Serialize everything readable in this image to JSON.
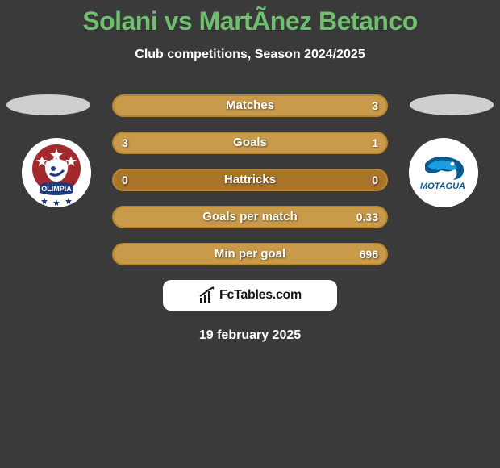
{
  "header": {
    "title": "Solani vs MartÃ­nez Betanco",
    "title_color": "#6fbf6f",
    "subtitle": "Club competitions, Season 2024/2025"
  },
  "teams": {
    "left": {
      "name": "Olimpia",
      "badge_bg": "#ffffff",
      "primary": "#a22a2f",
      "secondary": "#1e3a7a"
    },
    "right": {
      "name": "Motagua",
      "badge_bg": "#ffffff",
      "primary": "#0b5a8f",
      "secondary": "#1b9de0"
    }
  },
  "bars": {
    "border_color": "#b8862f",
    "dark_fill": "#a8742a",
    "light_fill": "#c89a4a",
    "stats": [
      {
        "label": "Matches",
        "left": "",
        "right": "3",
        "left_pct": 0,
        "right_pct": 100
      },
      {
        "label": "Goals",
        "left": "3",
        "right": "1",
        "left_pct": 75,
        "right_pct": 25
      },
      {
        "label": "Hattricks",
        "left": "0",
        "right": "0",
        "left_pct": 0,
        "right_pct": 0
      },
      {
        "label": "Goals per match",
        "left": "",
        "right": "0.33",
        "left_pct": 0,
        "right_pct": 100
      },
      {
        "label": "Min per goal",
        "left": "",
        "right": "696",
        "left_pct": 0,
        "right_pct": 100
      }
    ]
  },
  "brand": {
    "text": "FcTables.com"
  },
  "date": "19 february 2025",
  "style": {
    "background": "#3a3a3a",
    "oval_color": "#cfcfcf",
    "text_color": "#ffffff",
    "title_fontsize": 32,
    "subtitle_fontsize": 16,
    "stat_fontsize": 15
  }
}
